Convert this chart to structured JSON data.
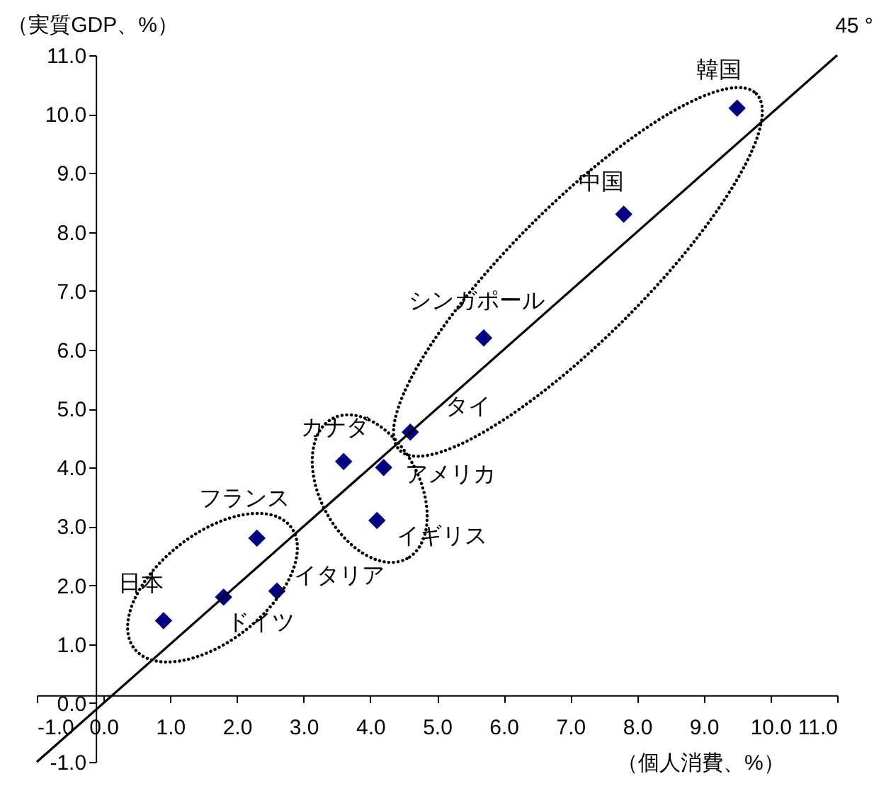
{
  "chart_data": {
    "type": "scatter",
    "xlabel": "（個人消費、%）",
    "ylabel": "（実質GDP、%）",
    "xlim": [
      -1,
      11
    ],
    "ylim": [
      -1,
      11
    ],
    "xticks": [
      {
        "value": -1,
        "label": "-1.0"
      },
      {
        "value": 0,
        "label": "0.0"
      },
      {
        "value": 1,
        "label": "1.0"
      },
      {
        "value": 2,
        "label": "2.0"
      },
      {
        "value": 3,
        "label": "3.0"
      },
      {
        "value": 4,
        "label": "4.0"
      },
      {
        "value": 5,
        "label": "5.0"
      },
      {
        "value": 6,
        "label": "6.0"
      },
      {
        "value": 7,
        "label": "7.0"
      },
      {
        "value": 8,
        "label": "8.0"
      },
      {
        "value": 9,
        "label": "9.0"
      },
      {
        "value": 10,
        "label": "10.0"
      },
      {
        "value": 11,
        "label": "11.0"
      }
    ],
    "yticks": [
      {
        "value": -1,
        "label": "-1.0"
      },
      {
        "value": 0,
        "label": "0.0"
      },
      {
        "value": 1,
        "label": "1.0"
      },
      {
        "value": 2,
        "label": "2.0"
      },
      {
        "value": 3,
        "label": "3.0"
      },
      {
        "value": 4,
        "label": "4.0"
      },
      {
        "value": 5,
        "label": "5.0"
      },
      {
        "value": 6,
        "label": "6.0"
      },
      {
        "value": 7,
        "label": "7.0"
      },
      {
        "value": 8,
        "label": "8.0"
      },
      {
        "value": 9,
        "label": "9.0"
      },
      {
        "value": 10,
        "label": "10.0"
      },
      {
        "value": 11,
        "label": "11.0"
      }
    ],
    "grid": false,
    "marker": "diamond",
    "series": [
      {
        "color": "#000080",
        "x": [
          0.9,
          1.8,
          2.6,
          2.3,
          3.6,
          4.2,
          4.1,
          4.6,
          5.7,
          7.8,
          9.5
        ],
        "values": [
          1.4,
          1.8,
          1.9,
          2.8,
          4.1,
          4.0,
          3.1,
          4.6,
          6.2,
          8.3,
          10.1
        ]
      },
      {
        "type": "line",
        "marker": "none",
        "color": "#000000",
        "x": [
          -1,
          11
        ],
        "values": [
          -1,
          11
        ]
      }
    ],
    "annotations": [
      {
        "text": "日本",
        "x": 0.9,
        "y": 1.4
      },
      {
        "text": "ドイツ",
        "x": 1.8,
        "y": 1.8
      },
      {
        "text": "イタリア",
        "x": 2.6,
        "y": 1.9
      },
      {
        "text": "フランス",
        "x": 2.3,
        "y": 2.8
      },
      {
        "text": "カナダ",
        "x": 3.6,
        "y": 4.1
      },
      {
        "text": "アメリカ",
        "x": 4.2,
        "y": 4.0
      },
      {
        "text": "イギリス",
        "x": 4.1,
        "y": 3.1
      },
      {
        "text": "タイ",
        "x": 4.6,
        "y": 4.6
      },
      {
        "text": "シンガポール",
        "x": 5.7,
        "y": 6.2
      },
      {
        "text": "中国",
        "x": 7.8,
        "y": 8.3
      },
      {
        "text": "韓国",
        "x": 9.5,
        "y": 10.1
      },
      "45 °"
    ]
  }
}
